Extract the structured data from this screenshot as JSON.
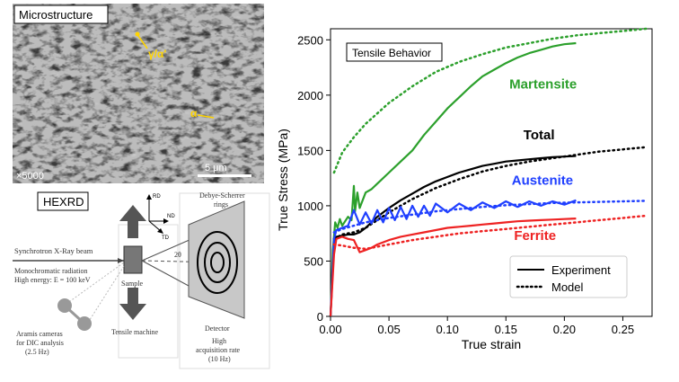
{
  "microstructure": {
    "label": "Microstructure",
    "annotation_va": "γ/α'",
    "annotation_alpha": "α",
    "magnification": "×5000",
    "scale_bar": "5 μm"
  },
  "hexrd": {
    "label": "HEXRD",
    "beam": "Synchrotron X-Ray beam",
    "mono_line1": "Monochromatic radiation",
    "mono_line2": "High energy: E = 100 keV",
    "sample": "Sample",
    "two_theta": "2θ",
    "axis_rd": "RD",
    "axis_nd": "ND",
    "axis_td": "TD",
    "debye_line1": "Debye-Scherrer",
    "debye_line2": "rings",
    "detector": "Detector",
    "high_line1": "High",
    "high_line2": "acquisition rate",
    "high_line3": "(10 Hz)",
    "tensile": "Tensile machine",
    "aramis_line1": "Aramis cameras",
    "aramis_line2": "for DIC analysis",
    "aramis_line3": "(2.5 Hz)"
  },
  "chart_data": {
    "type": "line",
    "title": "Tensile Behavior",
    "xlabel": "True strain",
    "ylabel": "True Stress (MPa)",
    "xlim": [
      0,
      0.275
    ],
    "ylim": [
      0,
      2600
    ],
    "xticks": [
      "0.00",
      "0.05",
      "0.10",
      "0.15",
      "0.20",
      "0.25"
    ],
    "yticks": [
      "0",
      "500",
      "1000",
      "1500",
      "2000",
      "2500"
    ],
    "grid": false,
    "legend": {
      "placement": "bottom-right",
      "entries": [
        {
          "label": "Experiment",
          "style": "solid"
        },
        {
          "label": "Model",
          "style": "dotted"
        }
      ]
    },
    "series": [
      {
        "name": "Martensite",
        "color": "#2ca02c",
        "experiment": {
          "x": [
            0.0,
            0.002,
            0.004,
            0.006,
            0.008,
            0.01,
            0.015,
            0.018,
            0.02,
            0.021,
            0.023,
            0.025,
            0.03,
            0.035,
            0.04,
            0.05,
            0.06,
            0.07,
            0.08,
            0.09,
            0.1,
            0.11,
            0.12,
            0.13,
            0.14,
            0.15,
            0.16,
            0.17,
            0.18,
            0.19,
            0.2,
            0.21
          ],
          "y": [
            0,
            600,
            850,
            800,
            880,
            820,
            900,
            870,
            1180,
            950,
            1120,
            980,
            1120,
            1150,
            1200,
            1300,
            1400,
            1500,
            1640,
            1760,
            1880,
            1980,
            2080,
            2170,
            2230,
            2290,
            2340,
            2380,
            2410,
            2440,
            2460,
            2470
          ]
        },
        "model": {
          "x": [
            0.003,
            0.01,
            0.02,
            0.03,
            0.05,
            0.07,
            0.09,
            0.11,
            0.13,
            0.15,
            0.17,
            0.19,
            0.21,
            0.23,
            0.25,
            0.27
          ],
          "y": [
            1300,
            1480,
            1620,
            1740,
            1930,
            2080,
            2210,
            2300,
            2370,
            2430,
            2470,
            2510,
            2540,
            2560,
            2580,
            2600
          ]
        }
      },
      {
        "name": "Total",
        "color": "#000000",
        "experiment": {
          "x": [
            0.0,
            0.003,
            0.005,
            0.01,
            0.015,
            0.02,
            0.025,
            0.03,
            0.04,
            0.05,
            0.06,
            0.07,
            0.08,
            0.09,
            0.1,
            0.11,
            0.12,
            0.13,
            0.14,
            0.15,
            0.16,
            0.17,
            0.18,
            0.19,
            0.2,
            0.21
          ],
          "y": [
            0,
            650,
            720,
            730,
            740,
            740,
            760,
            800,
            900,
            980,
            1050,
            1110,
            1170,
            1220,
            1260,
            1300,
            1330,
            1360,
            1380,
            1400,
            1410,
            1420,
            1430,
            1440,
            1445,
            1450
          ]
        },
        "model": {
          "x": [
            0.003,
            0.01,
            0.02,
            0.03,
            0.05,
            0.07,
            0.09,
            0.11,
            0.13,
            0.15,
            0.17,
            0.19,
            0.21,
            0.23,
            0.25,
            0.27
          ],
          "y": [
            700,
            740,
            760,
            800,
            940,
            1060,
            1160,
            1240,
            1310,
            1360,
            1400,
            1430,
            1460,
            1490,
            1510,
            1530
          ]
        }
      },
      {
        "name": "Austenite",
        "color": "#1f3fff",
        "experiment": {
          "x": [
            0.0,
            0.003,
            0.005,
            0.01,
            0.015,
            0.02,
            0.025,
            0.03,
            0.035,
            0.04,
            0.045,
            0.05,
            0.055,
            0.06,
            0.065,
            0.07,
            0.075,
            0.08,
            0.085,
            0.09,
            0.1,
            0.11,
            0.12,
            0.13,
            0.14,
            0.15,
            0.16,
            0.17,
            0.18,
            0.19,
            0.2,
            0.21
          ],
          "y": [
            0,
            700,
            780,
            800,
            820,
            960,
            830,
            940,
            840,
            960,
            850,
            980,
            870,
            990,
            880,
            1000,
            900,
            1000,
            910,
            1020,
            940,
            1020,
            960,
            1030,
            980,
            1040,
            990,
            1040,
            1000,
            1040,
            1010,
            1050
          ]
        },
        "model": {
          "x": [
            0.003,
            0.01,
            0.02,
            0.03,
            0.05,
            0.07,
            0.09,
            0.11,
            0.13,
            0.15,
            0.17,
            0.19,
            0.21,
            0.23,
            0.25,
            0.27
          ],
          "y": [
            760,
            790,
            820,
            850,
            890,
            920,
            950,
            970,
            990,
            1005,
            1015,
            1025,
            1030,
            1035,
            1040,
            1045
          ]
        }
      },
      {
        "name": "Ferrite",
        "color": "#ee2222",
        "experiment": {
          "x": [
            0.0,
            0.003,
            0.005,
            0.01,
            0.015,
            0.02,
            0.025,
            0.03,
            0.035,
            0.04,
            0.05,
            0.06,
            0.07,
            0.08,
            0.09,
            0.1,
            0.11,
            0.12,
            0.13,
            0.14,
            0.15,
            0.16,
            0.17,
            0.18,
            0.19,
            0.2,
            0.21
          ],
          "y": [
            0,
            560,
            700,
            720,
            700,
            690,
            580,
            600,
            620,
            650,
            690,
            720,
            740,
            760,
            780,
            800,
            810,
            820,
            830,
            840,
            850,
            860,
            865,
            870,
            875,
            880,
            885
          ]
        },
        "model": {
          "x": [
            0.003,
            0.01,
            0.02,
            0.03,
            0.05,
            0.07,
            0.09,
            0.11,
            0.13,
            0.15,
            0.17,
            0.19,
            0.21,
            0.23,
            0.25,
            0.27
          ],
          "y": [
            650,
            640,
            620,
            610,
            650,
            690,
            720,
            750,
            770,
            790,
            810,
            830,
            850,
            870,
            890,
            910
          ]
        }
      }
    ],
    "series_labels": {
      "Martensite": {
        "x": 0.153,
        "y": 2060
      },
      "Total": {
        "x": 0.165,
        "y": 1600
      },
      "Austenite": {
        "x": 0.155,
        "y": 1190
      },
      "Ferrite": {
        "x": 0.157,
        "y": 690
      }
    }
  }
}
